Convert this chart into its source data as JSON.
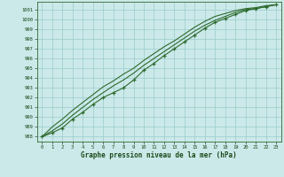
{
  "title": "Graphe pression niveau de la mer (hPa)",
  "bg_color": "#cce9e9",
  "line_color": "#2d6a2d",
  "grid_color": "#99cccc",
  "xlim": [
    -0.5,
    23.5
  ],
  "ylim": [
    987.5,
    1001.8
  ],
  "yticks": [
    988,
    989,
    990,
    991,
    992,
    993,
    994,
    995,
    996,
    997,
    998,
    999,
    1000,
    1001
  ],
  "xticks": [
    0,
    1,
    2,
    3,
    4,
    5,
    6,
    7,
    8,
    9,
    10,
    11,
    12,
    13,
    14,
    15,
    16,
    17,
    18,
    19,
    20,
    21,
    22,
    23
  ],
  "line1_x": [
    0,
    1,
    2,
    3,
    4,
    5,
    6,
    7,
    8,
    9,
    10,
    11,
    12,
    13,
    14,
    15,
    16,
    17,
    18,
    19,
    20,
    21,
    22,
    23
  ],
  "line1_y": [
    988.0,
    988.4,
    988.9,
    989.8,
    990.5,
    991.3,
    992.0,
    992.5,
    993.0,
    993.8,
    994.8,
    995.5,
    996.3,
    997.0,
    997.7,
    998.4,
    999.1,
    999.7,
    1000.1,
    1000.5,
    1000.9,
    1001.1,
    1001.3,
    1001.5
  ],
  "line2_x": [
    0,
    1,
    2,
    3,
    4,
    5,
    6,
    7,
    8,
    9,
    10,
    11,
    12,
    13,
    14,
    15,
    16,
    17,
    18,
    19,
    20,
    21,
    22,
    23
  ],
  "line2_y": [
    988.0,
    988.6,
    989.3,
    990.2,
    991.0,
    991.8,
    992.5,
    993.2,
    993.8,
    994.5,
    995.3,
    996.0,
    996.7,
    997.4,
    998.1,
    998.8,
    999.4,
    999.9,
    1000.3,
    1000.7,
    1001.0,
    1001.1,
    1001.3,
    1001.5
  ],
  "line3_x": [
    0,
    1,
    2,
    3,
    4,
    5,
    6,
    7,
    8,
    9,
    10,
    11,
    12,
    13,
    14,
    15,
    16,
    17,
    18,
    19,
    20,
    21,
    22,
    23
  ],
  "line3_y": [
    988.0,
    989.0,
    989.8,
    990.7,
    991.5,
    992.3,
    993.1,
    993.7,
    994.4,
    995.0,
    995.8,
    996.5,
    997.2,
    997.8,
    998.5,
    999.2,
    999.8,
    1000.3,
    1000.6,
    1000.9,
    1001.1,
    1001.2,
    1001.4,
    1001.5
  ]
}
